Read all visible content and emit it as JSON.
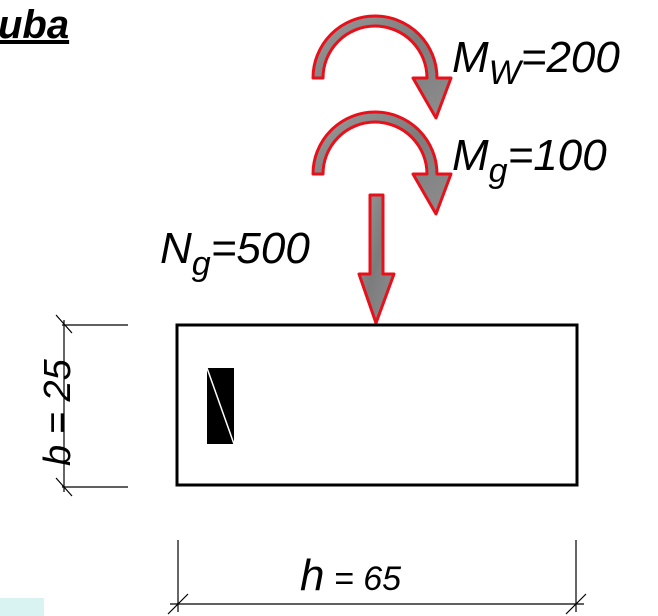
{
  "title_fragment": "uba",
  "loads": {
    "wind_moment": {
      "symbol": "M",
      "subscript": "W",
      "value_text": "=200"
    },
    "gravity_moment": {
      "symbol": "M",
      "subscript": "g",
      "value_text": "=100"
    },
    "axial_force": {
      "symbol": "N",
      "subscript": "g",
      "value_text": "=500"
    }
  },
  "dimensions": {
    "width": {
      "symbol": "b",
      "value_text": " = 25"
    },
    "height": {
      "symbol": "h",
      "value_text": " = 65"
    }
  },
  "colors": {
    "arrow_outline": "#e8101a",
    "arrow_fill": "#8a8a8a",
    "section_outline": "#000000",
    "rebar_fill": "#000000",
    "accent_box": "#d8f3f1"
  }
}
